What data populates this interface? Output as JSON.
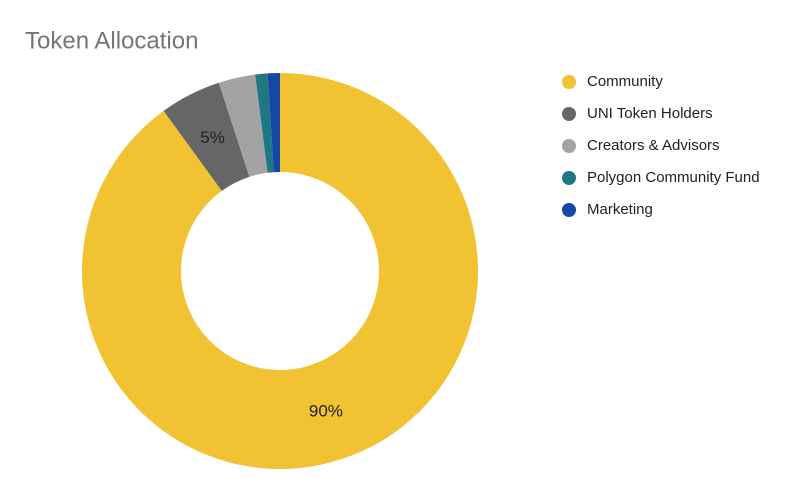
{
  "chart_data": {
    "type": "donut",
    "title": "Token Allocation",
    "categories": [
      "Community",
      "UNI Token Holders",
      "Creators & Advisors",
      "Polygon Community Fund",
      "Marketing"
    ],
    "values": [
      90,
      5,
      3,
      1,
      1
    ],
    "value_labels": [
      "90%",
      "5%",
      null,
      null,
      null
    ],
    "colors": [
      "#f1c232",
      "#666666",
      "#a3a3a3",
      "#1e7884",
      "#1646a6"
    ],
    "legend": "right"
  }
}
